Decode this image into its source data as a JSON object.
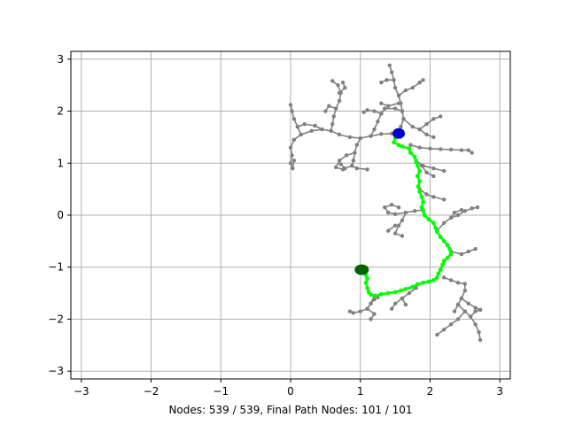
{
  "chart_data": {
    "type": "scatter",
    "xlabel": "Nodes: 539 / 539, Final Path Nodes: 101 / 101",
    "xlim": [
      -3.15,
      3.15
    ],
    "ylim": [
      -3.15,
      3.15
    ],
    "xticks": [
      -3,
      -2,
      -1,
      0,
      1,
      2,
      3
    ],
    "yticks": [
      -3,
      -2,
      -1,
      0,
      1,
      2,
      3
    ],
    "grid": true,
    "colors": {
      "tree": "#808080",
      "path": "#00ff00",
      "start": "#0000cc",
      "goal": "#006400",
      "grid": "#b0b0b0"
    },
    "start": [
      1.55,
      1.57
    ],
    "goal": [
      1.02,
      -1.05
    ],
    "tree_branches": [
      [
        [
          1.55,
          1.57
        ],
        [
          1.45,
          1.57
        ],
        [
          1.3,
          1.56
        ],
        [
          1.15,
          1.52
        ],
        [
          1.0,
          1.48
        ],
        [
          0.85,
          1.5
        ],
        [
          0.7,
          1.55
        ],
        [
          0.58,
          1.62
        ],
        [
          0.45,
          1.65
        ],
        [
          0.3,
          1.62
        ],
        [
          0.15,
          1.55
        ],
        [
          0.05,
          1.45
        ],
        [
          0.0,
          1.3
        ],
        [
          0.02,
          1.15
        ],
        [
          0.0,
          1.0
        ],
        [
          0.03,
          0.9
        ],
        [
          0.05,
          1.05
        ]
      ],
      [
        [
          0.15,
          1.55
        ],
        [
          0.1,
          1.7
        ],
        [
          0.05,
          1.85
        ],
        [
          0.02,
          2.0
        ],
        [
          0.0,
          2.12
        ]
      ],
      [
        [
          0.45,
          1.65
        ],
        [
          0.35,
          1.72
        ],
        [
          0.2,
          1.75
        ],
        [
          0.1,
          1.7
        ]
      ],
      [
        [
          0.58,
          1.62
        ],
        [
          0.6,
          1.75
        ],
        [
          0.62,
          1.9
        ],
        [
          0.65,
          2.05
        ],
        [
          0.7,
          2.2
        ],
        [
          0.72,
          2.35
        ],
        [
          0.68,
          2.5
        ],
        [
          0.6,
          2.58
        ]
      ],
      [
        [
          0.7,
          2.35
        ],
        [
          0.78,
          2.45
        ],
        [
          0.75,
          2.55
        ]
      ],
      [
        [
          0.65,
          2.05
        ],
        [
          0.55,
          2.1
        ],
        [
          0.5,
          2.0
        ]
      ],
      [
        [
          1.15,
          1.52
        ],
        [
          1.2,
          1.65
        ],
        [
          1.25,
          1.8
        ],
        [
          1.3,
          1.95
        ],
        [
          1.35,
          2.05
        ]
      ],
      [
        [
          1.3,
          1.95
        ],
        [
          1.2,
          2.0
        ],
        [
          1.1,
          2.02
        ],
        [
          1.05,
          1.98
        ]
      ],
      [
        [
          1.35,
          2.05
        ],
        [
          1.5,
          2.05
        ],
        [
          1.6,
          2.0
        ]
      ],
      [
        [
          1.0,
          1.48
        ],
        [
          0.95,
          1.35
        ],
        [
          0.92,
          1.2
        ],
        [
          0.9,
          1.05
        ],
        [
          0.88,
          0.95
        ],
        [
          0.95,
          0.9
        ],
        [
          1.1,
          0.88
        ]
      ],
      [
        [
          0.92,
          1.2
        ],
        [
          0.8,
          1.15
        ],
        [
          0.7,
          1.05
        ],
        [
          0.65,
          0.92
        ],
        [
          0.75,
          0.88
        ]
      ],
      [
        [
          0.88,
          0.95
        ],
        [
          0.78,
          0.9
        ],
        [
          0.72,
          0.98
        ]
      ],
      [
        [
          1.55,
          1.57
        ],
        [
          1.58,
          1.7
        ],
        [
          1.62,
          1.85
        ],
        [
          1.6,
          2.0
        ],
        [
          1.58,
          2.15
        ],
        [
          1.55,
          2.3
        ],
        [
          1.5,
          2.45
        ],
        [
          1.48,
          2.6
        ],
        [
          1.45,
          2.75
        ],
        [
          1.42,
          2.88
        ]
      ],
      [
        [
          1.55,
          2.3
        ],
        [
          1.65,
          2.4
        ],
        [
          1.75,
          2.45
        ],
        [
          1.85,
          2.55
        ],
        [
          1.9,
          2.6
        ]
      ],
      [
        [
          1.48,
          2.6
        ],
        [
          1.38,
          2.6
        ],
        [
          1.3,
          2.55
        ]
      ],
      [
        [
          1.55,
          2.15
        ],
        [
          1.4,
          2.1
        ],
        [
          1.3,
          2.15
        ]
      ],
      [
        [
          1.62,
          1.85
        ],
        [
          1.75,
          1.7
        ],
        [
          1.85,
          1.65
        ],
        [
          1.95,
          1.75
        ],
        [
          2.05,
          1.85
        ],
        [
          2.15,
          1.9
        ]
      ],
      [
        [
          1.85,
          1.65
        ],
        [
          1.95,
          1.55
        ],
        [
          2.05,
          1.5
        ]
      ],
      [
        [
          1.72,
          1.35
        ],
        [
          1.85,
          1.3
        ],
        [
          2.0,
          1.28
        ],
        [
          2.15,
          1.27
        ],
        [
          2.3,
          1.26
        ],
        [
          2.45,
          1.25
        ],
        [
          2.55,
          1.25
        ],
        [
          2.6,
          1.2
        ]
      ],
      [
        [
          1.8,
          1.05
        ],
        [
          1.9,
          0.95
        ],
        [
          2.05,
          0.9
        ],
        [
          2.2,
          0.85
        ]
      ],
      [
        [
          1.88,
          0.95
        ],
        [
          1.95,
          0.82
        ],
        [
          2.05,
          0.75
        ]
      ],
      [
        [
          1.85,
          0.5
        ],
        [
          1.95,
          0.4
        ],
        [
          2.05,
          0.35
        ],
        [
          2.2,
          0.3
        ]
      ],
      [
        [
          1.9,
          0.1
        ],
        [
          1.78,
          0.08
        ],
        [
          1.65,
          0.05
        ],
        [
          1.5,
          0.02
        ],
        [
          1.4,
          0.05
        ],
        [
          1.35,
          0.15
        ],
        [
          1.45,
          0.2
        ],
        [
          1.55,
          0.15
        ]
      ],
      [
        [
          1.65,
          0.05
        ],
        [
          1.6,
          -0.1
        ],
        [
          1.55,
          -0.2
        ],
        [
          1.5,
          -0.35
        ],
        [
          1.6,
          -0.4
        ]
      ],
      [
        [
          1.5,
          -0.2
        ],
        [
          1.4,
          -0.3
        ]
      ],
      [
        [
          2.1,
          -0.3
        ],
        [
          2.2,
          -0.15
        ],
        [
          2.3,
          -0.05
        ],
        [
          2.4,
          0.0
        ],
        [
          2.5,
          0.08
        ],
        [
          2.6,
          0.13
        ],
        [
          2.68,
          0.15
        ]
      ],
      [
        [
          2.3,
          -0.05
        ],
        [
          2.35,
          0.05
        ],
        [
          2.45,
          0.1
        ]
      ],
      [
        [
          2.3,
          -0.7
        ],
        [
          2.45,
          -0.75
        ],
        [
          2.55,
          -0.7
        ],
        [
          2.65,
          -0.65
        ]
      ],
      [
        [
          2.2,
          -1.2
        ],
        [
          2.3,
          -1.25
        ],
        [
          2.4,
          -1.3
        ],
        [
          2.5,
          -1.32
        ],
        [
          2.5,
          -1.45
        ],
        [
          2.45,
          -1.6
        ],
        [
          2.4,
          -1.72
        ],
        [
          2.35,
          -1.85
        ]
      ],
      [
        [
          2.45,
          -1.6
        ],
        [
          2.55,
          -1.7
        ],
        [
          2.65,
          -1.78
        ],
        [
          2.72,
          -1.82
        ]
      ],
      [
        [
          2.4,
          -1.72
        ],
        [
          2.5,
          -1.85
        ],
        [
          2.58,
          -1.95
        ],
        [
          2.65,
          -2.1
        ],
        [
          2.7,
          -2.25
        ],
        [
          2.72,
          -2.4
        ]
      ],
      [
        [
          2.5,
          -1.85
        ],
        [
          2.4,
          -2.0
        ],
        [
          2.3,
          -2.1
        ],
        [
          2.2,
          -2.2
        ],
        [
          2.1,
          -2.3
        ]
      ],
      [
        [
          2.58,
          -1.95
        ],
        [
          2.65,
          -1.85
        ],
        [
          2.72,
          -1.82
        ]
      ],
      [
        [
          1.8,
          -1.4
        ],
        [
          1.7,
          -1.5
        ],
        [
          1.6,
          -1.6
        ],
        [
          1.5,
          -1.7
        ],
        [
          1.45,
          -1.8
        ]
      ],
      [
        [
          1.6,
          -1.6
        ],
        [
          1.65,
          -1.72
        ]
      ],
      [
        [
          1.2,
          -1.55
        ],
        [
          1.15,
          -1.7
        ],
        [
          1.1,
          -1.8
        ],
        [
          1.0,
          -1.85
        ],
        [
          0.9,
          -1.88
        ],
        [
          0.85,
          -1.85
        ]
      ],
      [
        [
          1.1,
          -1.8
        ],
        [
          1.2,
          -1.9
        ],
        [
          1.15,
          -2.0
        ]
      ],
      [
        [
          1.15,
          -1.7
        ],
        [
          1.2,
          -1.62
        ],
        [
          1.25,
          -1.58
        ]
      ]
    ],
    "final_path": [
      [
        1.55,
        1.57
      ],
      [
        1.5,
        1.48
      ],
      [
        1.48,
        1.4
      ],
      [
        1.55,
        1.35
      ],
      [
        1.6,
        1.32
      ],
      [
        1.7,
        1.28
      ],
      [
        1.72,
        1.2
      ],
      [
        1.78,
        1.12
      ],
      [
        1.8,
        1.02
      ],
      [
        1.82,
        0.95
      ],
      [
        1.85,
        0.85
      ],
      [
        1.82,
        0.75
      ],
      [
        1.85,
        0.65
      ],
      [
        1.83,
        0.55
      ],
      [
        1.85,
        0.45
      ],
      [
        1.88,
        0.35
      ],
      [
        1.9,
        0.25
      ],
      [
        1.88,
        0.15
      ],
      [
        1.9,
        0.08
      ],
      [
        1.92,
        0.0
      ],
      [
        1.98,
        -0.08
      ],
      [
        2.05,
        -0.15
      ],
      [
        2.08,
        -0.25
      ],
      [
        2.1,
        -0.32
      ],
      [
        2.15,
        -0.42
      ],
      [
        2.2,
        -0.5
      ],
      [
        2.25,
        -0.58
      ],
      [
        2.28,
        -0.65
      ],
      [
        2.3,
        -0.75
      ],
      [
        2.25,
        -0.82
      ],
      [
        2.2,
        -0.88
      ],
      [
        2.18,
        -0.95
      ],
      [
        2.15,
        -1.05
      ],
      [
        2.12,
        -1.12
      ],
      [
        2.1,
        -1.2
      ],
      [
        2.05,
        -1.25
      ],
      [
        1.98,
        -1.28
      ],
      [
        1.9,
        -1.3
      ],
      [
        1.82,
        -1.33
      ],
      [
        1.75,
        -1.38
      ],
      [
        1.65,
        -1.42
      ],
      [
        1.58,
        -1.45
      ],
      [
        1.5,
        -1.48
      ],
      [
        1.4,
        -1.5
      ],
      [
        1.3,
        -1.52
      ],
      [
        1.22,
        -1.55
      ],
      [
        1.15,
        -1.53
      ],
      [
        1.12,
        -1.48
      ],
      [
        1.1,
        -1.4
      ],
      [
        1.08,
        -1.3
      ],
      [
        1.1,
        -1.22
      ],
      [
        1.08,
        -1.15
      ],
      [
        1.05,
        -1.1
      ],
      [
        1.02,
        -1.05
      ]
    ]
  }
}
